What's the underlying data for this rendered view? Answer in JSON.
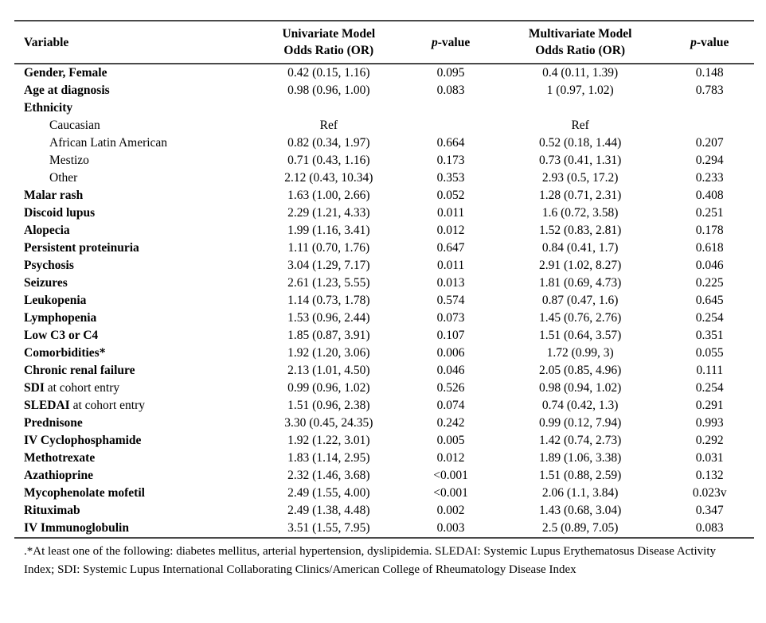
{
  "colors": {
    "border": "#4a4a4a",
    "text": "#000000",
    "background": "#ffffff"
  },
  "table": {
    "headers": {
      "variable": "Variable",
      "univariate_line1": "Univariate Model",
      "univariate_line2": "Odds Ratio (OR)",
      "multivariate_line1": "Multivariate Model",
      "multivariate_line2": "Odds Ratio (OR)",
      "p_italic": "p",
      "p_rest": "-value"
    },
    "rows": [
      {
        "bold": "Gender, Female",
        "rest": "",
        "indent": false,
        "u_or": "0.42 (0.15, 1.16)",
        "u_p": "0.095",
        "m_or": "0.4 (0.11, 1.39)",
        "m_p": "0.148"
      },
      {
        "bold": "Age at diagnosis",
        "rest": "",
        "indent": false,
        "u_or": "0.98 (0.96, 1.00)",
        "u_p": "0.083",
        "m_or": "1 (0.97, 1.02)",
        "m_p": "0.783"
      },
      {
        "bold": "Ethnicity",
        "rest": "",
        "indent": false,
        "u_or": "",
        "u_p": "",
        "m_or": "",
        "m_p": ""
      },
      {
        "bold": "",
        "rest": "Caucasian",
        "indent": true,
        "u_or": "Ref",
        "u_p": "",
        "m_or": "Ref",
        "m_p": ""
      },
      {
        "bold": "",
        "rest": "African Latin American",
        "indent": true,
        "u_or": "0.82 (0.34, 1.97)",
        "u_p": "0.664",
        "m_or": "0.52 (0.18, 1.44)",
        "m_p": "0.207"
      },
      {
        "bold": "",
        "rest": "Mestizo",
        "indent": true,
        "u_or": "0.71 (0.43, 1.16)",
        "u_p": "0.173",
        "m_or": "0.73 (0.41, 1.31)",
        "m_p": "0.294"
      },
      {
        "bold": "",
        "rest": "Other",
        "indent": true,
        "u_or": "2.12 (0.43, 10.34)",
        "u_p": "0.353",
        "m_or": "2.93 (0.5, 17.2)",
        "m_p": "0.233"
      },
      {
        "bold": "Malar rash",
        "rest": "",
        "indent": false,
        "u_or": "1.63 (1.00, 2.66)",
        "u_p": "0.052",
        "m_or": "1.28 (0.71, 2.31)",
        "m_p": "0.408"
      },
      {
        "bold": "Discoid lupus",
        "rest": "",
        "indent": false,
        "u_or": "2.29 (1.21, 4.33)",
        "u_p": "0.011",
        "m_or": "1.6 (0.72, 3.58)",
        "m_p": "0.251"
      },
      {
        "bold": "Alopecia",
        "rest": "",
        "indent": false,
        "u_or": "1.99 (1.16, 3.41)",
        "u_p": "0.012",
        "m_or": "1.52 (0.83, 2.81)",
        "m_p": "0.178"
      },
      {
        "bold": "Persistent proteinuria",
        "rest": "",
        "indent": false,
        "u_or": "1.11 (0.70, 1.76)",
        "u_p": "0.647",
        "m_or": "0.84 (0.41, 1.7)",
        "m_p": "0.618"
      },
      {
        "bold": "Psychosis",
        "rest": "",
        "indent": false,
        "u_or": "3.04 (1.29, 7.17)",
        "u_p": "0.011",
        "m_or": "2.91 (1.02, 8.27)",
        "m_p": "0.046"
      },
      {
        "bold": "Seizures",
        "rest": "",
        "indent": false,
        "u_or": "2.61 (1.23, 5.55)",
        "u_p": "0.013",
        "m_or": "1.81 (0.69, 4.73)",
        "m_p": "0.225"
      },
      {
        "bold": "Leukopenia",
        "rest": "",
        "indent": false,
        "u_or": "1.14 (0.73, 1.78)",
        "u_p": "0.574",
        "m_or": "0.87 (0.47, 1.6)",
        "m_p": "0.645"
      },
      {
        "bold": "Lymphopenia",
        "rest": "",
        "indent": false,
        "u_or": "1.53 (0.96, 2.44)",
        "u_p": "0.073",
        "m_or": "1.45 (0.76, 2.76)",
        "m_p": "0.254"
      },
      {
        "bold": "Low C3 or C4",
        "rest": "",
        "indent": false,
        "u_or": "1.85 (0.87, 3.91)",
        "u_p": "0.107",
        "m_or": "1.51 (0.64, 3.57)",
        "m_p": "0.351"
      },
      {
        "bold": "Comorbidities*",
        "rest": "",
        "indent": false,
        "u_or": "1.92 (1.20, 3.06)",
        "u_p": "0.006",
        "m_or": "1.72 (0.99, 3)",
        "m_p": "0.055"
      },
      {
        "bold": "Chronic renal failure",
        "rest": "",
        "indent": false,
        "u_or": "2.13 (1.01, 4.50)",
        "u_p": "0.046",
        "m_or": "2.05 (0.85, 4.96)",
        "m_p": "0.111"
      },
      {
        "bold": "SDI",
        "rest": " at cohort entry",
        "indent": false,
        "u_or": "0.99 (0.96, 1.02)",
        "u_p": "0.526",
        "m_or": "0.98 (0.94, 1.02)",
        "m_p": "0.254"
      },
      {
        "bold": "SLEDAI",
        "rest": " at cohort entry",
        "indent": false,
        "u_or": "1.51 (0.96, 2.38)",
        "u_p": "0.074",
        "m_or": "0.74 (0.42, 1.3)",
        "m_p": "0.291"
      },
      {
        "bold": "Prednisone",
        "rest": "",
        "indent": false,
        "u_or": "3.30 (0.45, 24.35)",
        "u_p": "0.242",
        "m_or": "0.99 (0.12, 7.94)",
        "m_p": "0.993"
      },
      {
        "bold": "IV Cyclophosphamide",
        "rest": "",
        "indent": false,
        "u_or": "1.92 (1.22, 3.01)",
        "u_p": "0.005",
        "m_or": "1.42 (0.74, 2.73)",
        "m_p": "0.292"
      },
      {
        "bold": "Methotrexate",
        "rest": "",
        "indent": false,
        "u_or": "1.83 (1.14, 2.95)",
        "u_p": "0.012",
        "m_or": "1.89 (1.06, 3.38)",
        "m_p": "0.031"
      },
      {
        "bold": "Azathioprine",
        "rest": "",
        "indent": false,
        "u_or": "2.32 (1.46, 3.68)",
        "u_p": "<0.001",
        "m_or": "1.51 (0.88, 2.59)",
        "m_p": "0.132"
      },
      {
        "bold": "Mycophenolate mofetil",
        "rest": "",
        "indent": false,
        "u_or": "2.49 (1.55, 4.00)",
        "u_p": "<0.001",
        "m_or": "2.06 (1.1, 3.84)",
        "m_p": "0.023v"
      },
      {
        "bold": "Rituximab",
        "rest": "",
        "indent": false,
        "u_or": "2.49 (1.38, 4.48)",
        "u_p": "0.002",
        "m_or": "1.43 (0.68, 3.04)",
        "m_p": "0.347"
      },
      {
        "bold": "IV Immunoglobulin",
        "rest": "",
        "indent": false,
        "u_or": "3.51 (1.55, 7.95)",
        "u_p": "0.003",
        "m_or": "2.5 (0.89, 7.05)",
        "m_p": "0.083"
      }
    ],
    "footnote": ".*At least one of the following: diabetes mellitus, arterial hypertension, dyslipidemia. SLEDAI: Systemic Lupus Erythematosus Disease Activity Index; SDI: Systemic Lupus International Collaborating Clinics/American College of Rheumatology Disease Index"
  }
}
